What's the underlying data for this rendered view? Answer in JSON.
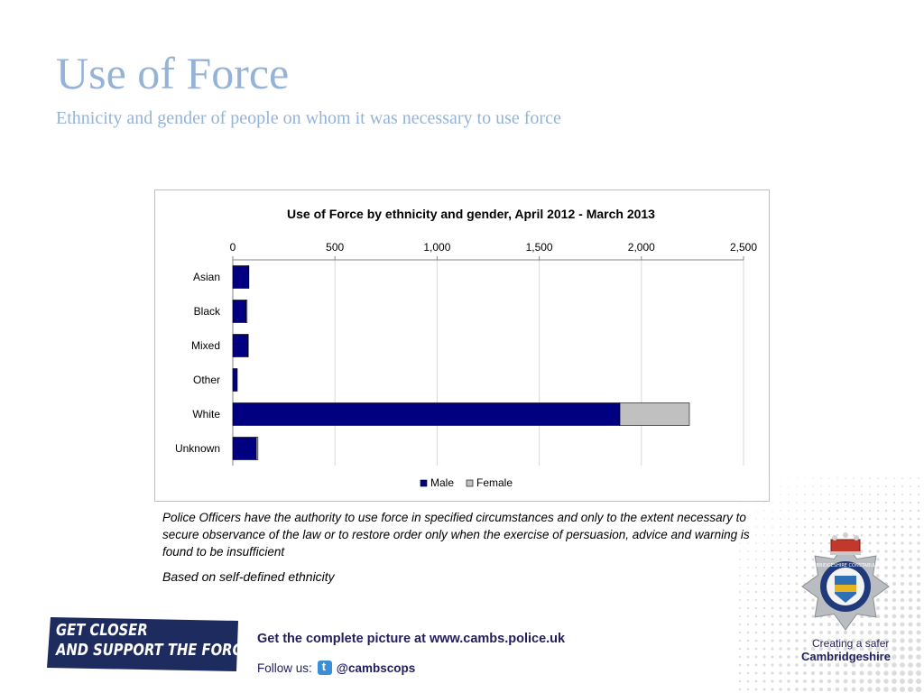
{
  "slide": {
    "title": "Use of Force",
    "subtitle": "Ethnicity and gender of people on whom it was necessary to use force"
  },
  "note": {
    "definition": "Police Officers have the authority to use force in specified circumstances and only to the extent necessary to secure observance of the law or to restore order only when the exercise of persuasion, advice and warning is found to be insufficient",
    "basis": "Based on self-defined ethnicity"
  },
  "footer": {
    "banner_line1": "GET CLOSER",
    "banner_line2": "AND SUPPORT THE FORCE!",
    "picture_text": "Get the complete picture at www.cambs.police.uk",
    "follow_label": "Follow us:",
    "twitter_handle": "@cambscops",
    "twitter_icon": "twitter-icon",
    "tagline_line1": "Creating a safer",
    "tagline_line2": "Cambridgeshire",
    "crest_text": "CAMBRIDGESHIRE CONSTABULARY"
  },
  "colors": {
    "title": "#95b3d7",
    "male": "#000080",
    "female": "#c0c0c0",
    "footer_text": "#1f1f5f",
    "banner": "#1e2b5e"
  },
  "chart_data": {
    "type": "bar",
    "orientation": "horizontal",
    "stacked": true,
    "title": "Use of Force by ethnicity and gender, April 2012 - March 2013",
    "categories": [
      "Asian",
      "Black",
      "Mixed",
      "Other",
      "White",
      "Unknown"
    ],
    "series": [
      {
        "name": "Male",
        "color": "#000080",
        "values": [
          77,
          65,
          74,
          22,
          1895,
          115
        ]
      },
      {
        "name": "Female",
        "color": "#c0c0c0",
        "values": [
          2,
          5,
          2,
          0,
          340,
          8
        ]
      }
    ],
    "xlim": [
      0,
      2500
    ],
    "xticks": [
      "0",
      "500",
      "1,000",
      "1,500",
      "2,000",
      "2,500"
    ],
    "xtick_values": [
      0,
      500,
      1000,
      1500,
      2000,
      2500
    ],
    "xaxis_position": "top",
    "grid": true,
    "legend": "bottom"
  }
}
